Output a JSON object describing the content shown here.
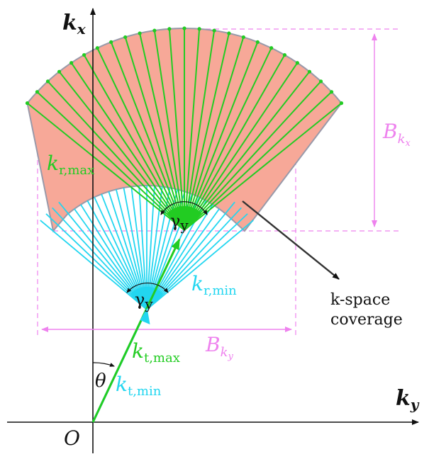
{
  "axes": {
    "kx_main": "k",
    "kx_sub": "x",
    "ky_main": "k",
    "ky_sub": "y",
    "origin": "O"
  },
  "angles": {
    "theta": "θ",
    "gamma_main": "γ",
    "gamma_sub": "y"
  },
  "labels": {
    "kr_max_main": "k",
    "kr_max_sub": "r,max",
    "kr_min_main": "k",
    "kr_min_sub": "r,min",
    "kt_max_main": "k",
    "kt_max_sub": "t,max",
    "kt_min_main": "k",
    "kt_min_sub": "t,min",
    "bkx_main": "B",
    "bkx_sub": "k",
    "bkx_subsub": "x",
    "bky_main": "B",
    "bky_sub": "k",
    "bky_subsub": "y",
    "coverage_line1": "k-space",
    "coverage_line2": "coverage"
  },
  "colors": {
    "sector_fill": "#f7a898",
    "green": "#22cc22",
    "cyan": "#22d6f0",
    "pink": "#ee82ee",
    "axis": "#111111"
  }
}
